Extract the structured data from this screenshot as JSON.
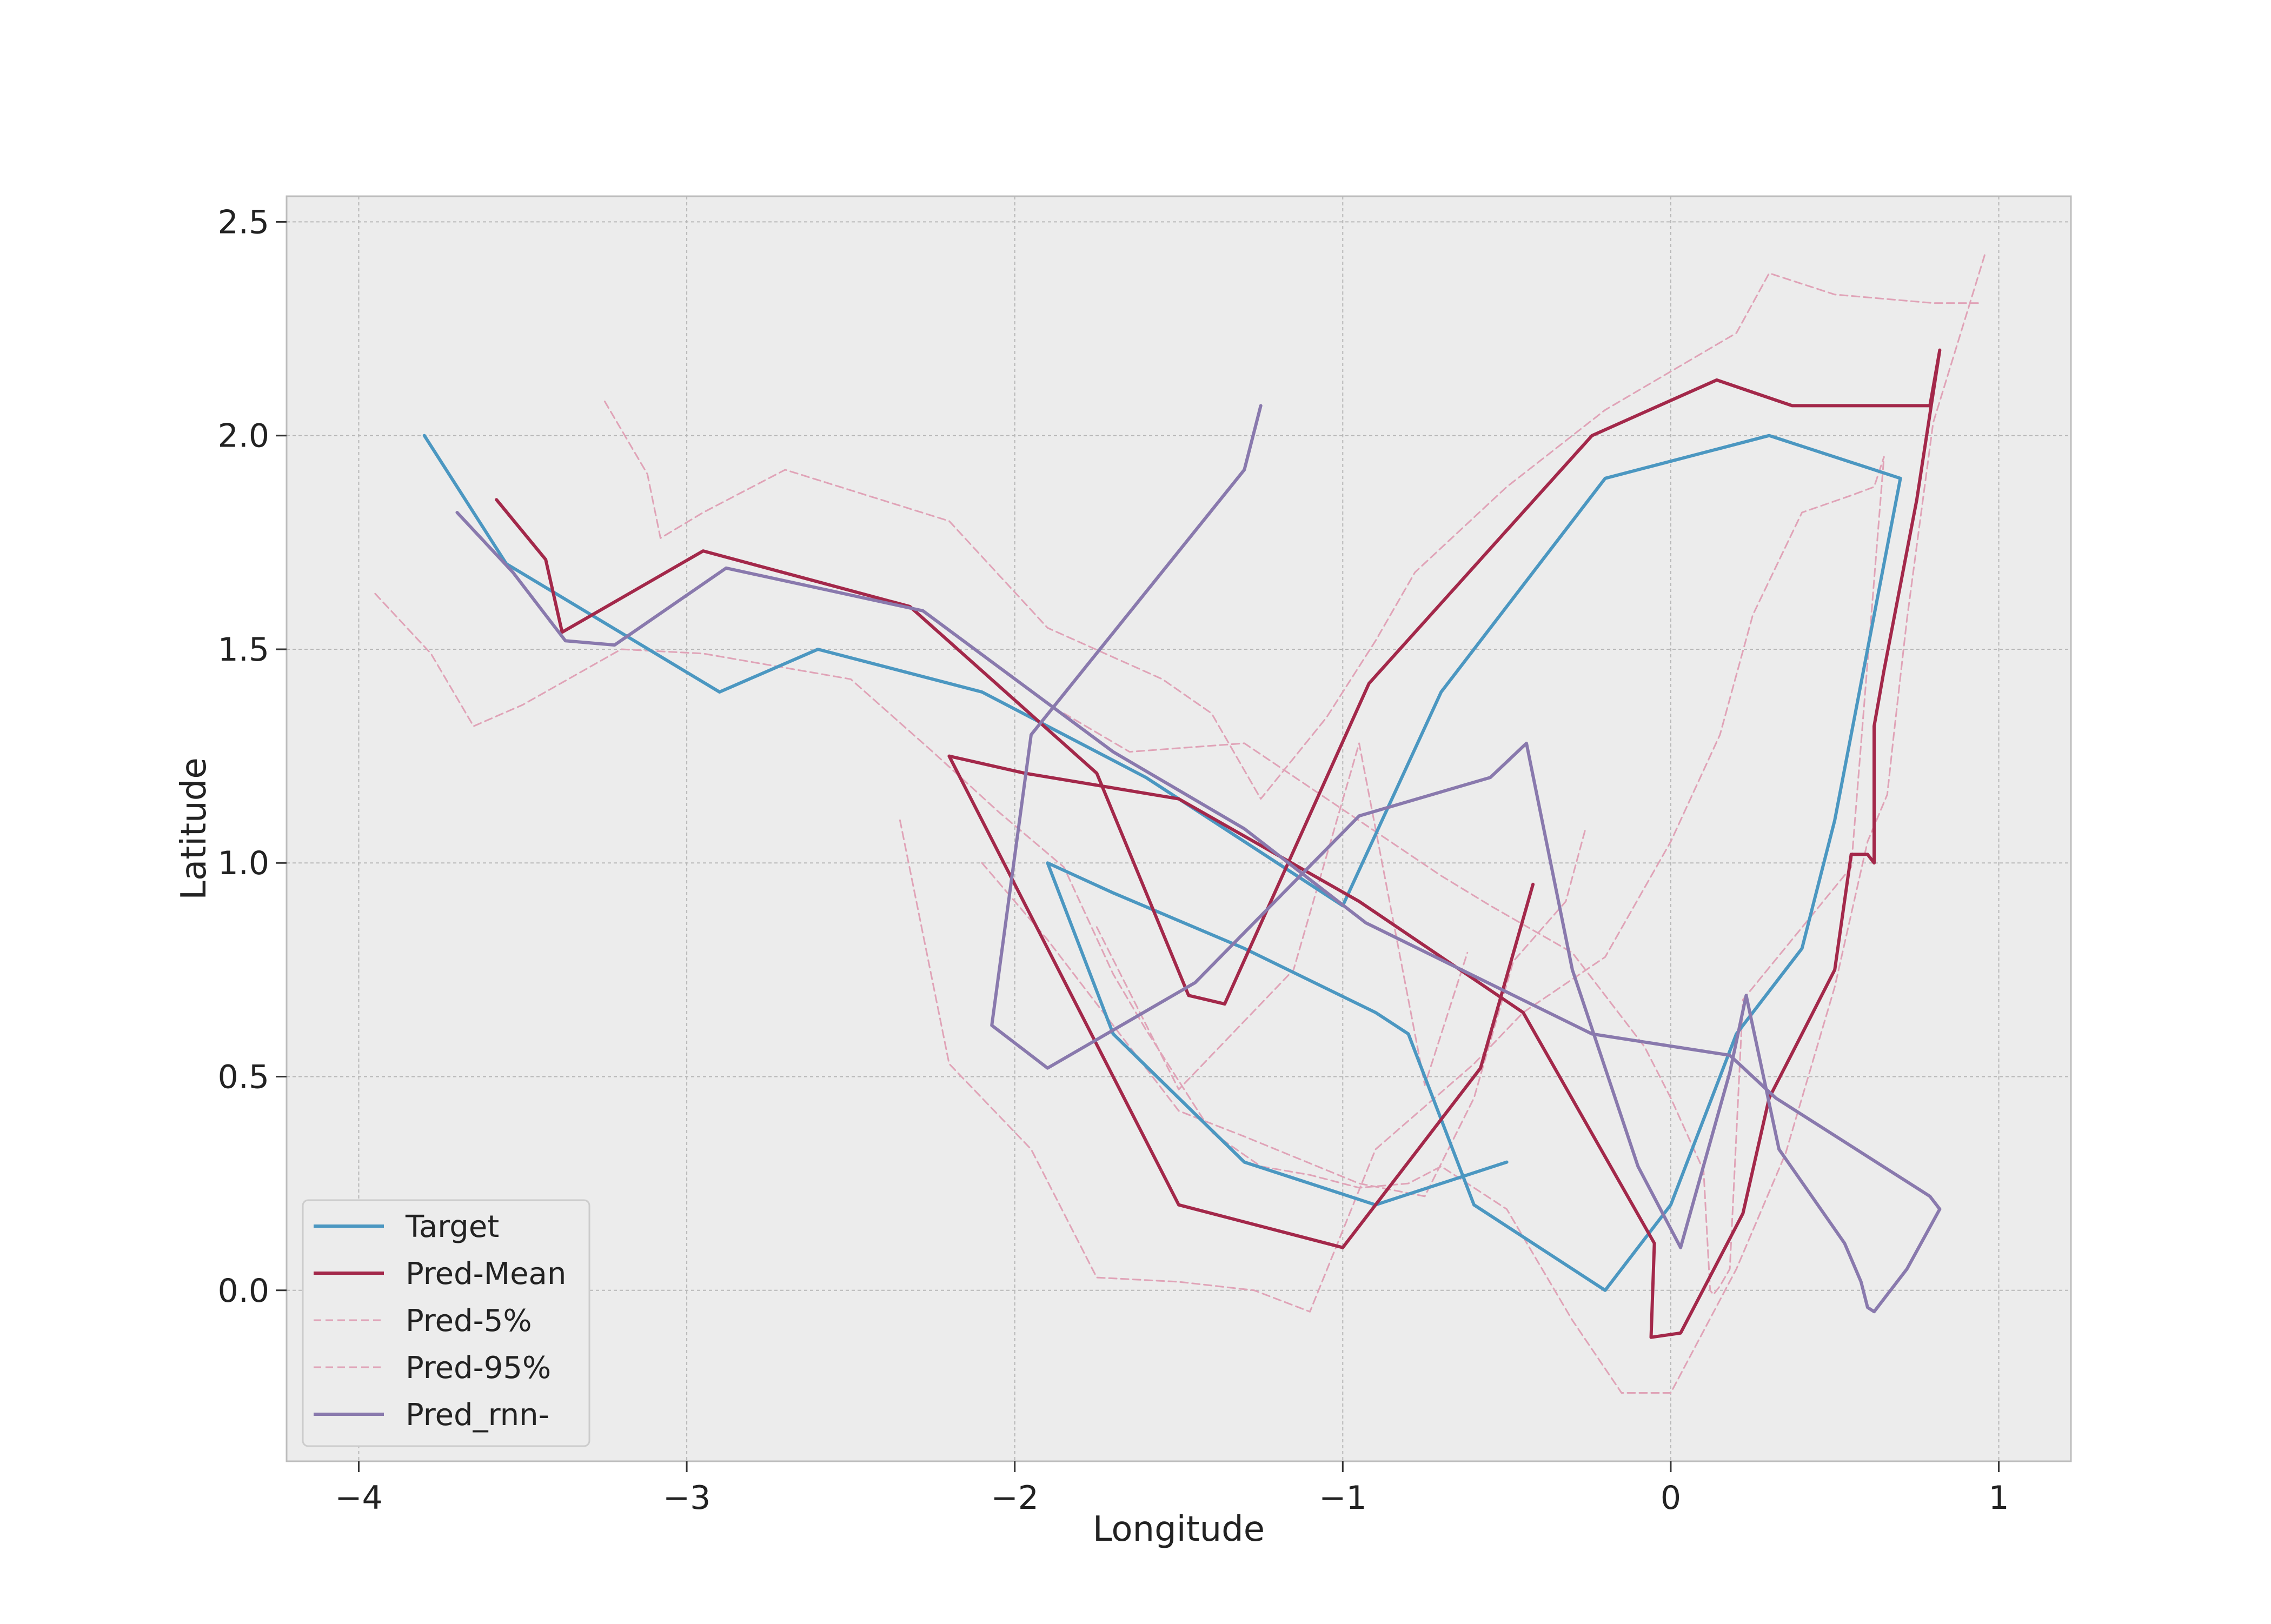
{
  "chart_data": {
    "type": "line",
    "title": "",
    "xlabel": "Longitude",
    "ylabel": "Latitude",
    "xlim": [
      -4.22,
      1.22
    ],
    "ylim": [
      -0.4,
      2.56
    ],
    "xticks": [
      -4,
      -3,
      -2,
      -1,
      0,
      1
    ],
    "xtick_labels": [
      "−4",
      "−3",
      "−2",
      "−1",
      "0",
      "1"
    ],
    "yticks": [
      0.0,
      0.5,
      1.0,
      1.5,
      2.0,
      2.5
    ],
    "ytick_labels": [
      "0.0",
      "0.5",
      "1.0",
      "1.5",
      "2.0",
      "2.5"
    ],
    "grid": true,
    "legend_position": "lower-left",
    "colors": {
      "target": "#4b97c1",
      "mean": "#a3284a",
      "quantile": "#e0a3b7",
      "rnn": "#8979ad",
      "plot_bg": "#ececec",
      "grid": "#b8b8b8",
      "axes_edge": "#bcbcbc"
    },
    "series": [
      {
        "name": "Target",
        "key": "target",
        "style": "solid",
        "x": [
          -3.8,
          -3.55,
          -2.9,
          -2.6,
          -2.1,
          -1.6,
          -1.0,
          -0.7,
          -0.2,
          0.3,
          0.7,
          0.5,
          0.4,
          0.2,
          0.0,
          -0.2,
          -0.6,
          -0.8,
          -0.9,
          -1.3,
          -1.7,
          -1.9,
          -1.7,
          -1.3,
          -0.9,
          -0.5
        ],
        "y": [
          2.0,
          1.7,
          1.4,
          1.5,
          1.4,
          1.2,
          0.9,
          1.4,
          1.9,
          2.0,
          1.9,
          1.1,
          0.8,
          0.6,
          0.2,
          0.0,
          0.2,
          0.6,
          0.65,
          0.8,
          0.93,
          1.0,
          0.6,
          0.3,
          0.2,
          0.3
        ]
      },
      {
        "name": "Pred-Mean",
        "key": "mean",
        "style": "solid",
        "x": [
          -3.58,
          -3.43,
          -3.38,
          -2.95,
          -2.32,
          -1.75,
          -1.47,
          -1.36,
          -0.92,
          -0.24,
          0.14,
          0.37,
          0.79,
          0.82,
          0.75,
          0.65,
          0.62,
          0.62,
          0.6,
          0.55,
          0.5,
          0.4,
          0.3,
          0.22,
          0.03,
          -0.06,
          -0.05,
          -0.45,
          -0.95,
          -1.5,
          -1.97,
          -2.2,
          -1.5,
          -1.0,
          -0.58,
          -0.42
        ],
        "y": [
          1.85,
          1.71,
          1.54,
          1.73,
          1.6,
          1.21,
          0.69,
          0.67,
          1.42,
          2.0,
          2.13,
          2.07,
          2.07,
          2.2,
          1.85,
          1.45,
          1.32,
          1.0,
          1.02,
          1.02,
          0.75,
          0.6,
          0.45,
          0.18,
          -0.1,
          -0.11,
          0.11,
          0.65,
          0.91,
          1.15,
          1.21,
          1.25,
          0.2,
          0.1,
          0.52,
          0.95
        ]
      },
      {
        "name": "Pred-5%",
        "key": "quantile",
        "style": "dashed",
        "x": [
          -3.95,
          -3.78,
          -3.65,
          -3.5,
          -3.2,
          -2.95,
          -2.5,
          -2.25,
          -2.05,
          -1.85,
          -1.7,
          -1.6,
          -1.4,
          -1.25,
          -1.1,
          -0.95,
          -0.8,
          -0.7,
          -0.5,
          -0.3,
          -0.15,
          0.0,
          0.2,
          0.35,
          0.5,
          0.6,
          0.66,
          0.68,
          0.72,
          0.8,
          0.96
        ],
        "y": [
          1.63,
          1.49,
          1.32,
          1.37,
          1.5,
          1.49,
          1.43,
          1.26,
          1.12,
          0.99,
          0.74,
          0.61,
          0.37,
          0.29,
          0.27,
          0.24,
          0.25,
          0.29,
          0.19,
          -0.07,
          -0.24,
          -0.24,
          0.05,
          0.32,
          0.71,
          1.05,
          1.16,
          1.3,
          1.57,
          2.03,
          2.43
        ]
      },
      {
        "name": "Pred-95%",
        "key": "quantile",
        "style": "dashed",
        "x": [
          -3.25,
          -3.12,
          -3.08,
          -2.95,
          -2.7,
          -2.2,
          -1.9,
          -1.55,
          -1.4,
          -1.25,
          -1.05,
          -0.9,
          -0.78,
          -0.5,
          -0.2,
          0.2,
          0.3,
          0.5,
          0.8,
          0.95
        ],
        "y": [
          2.08,
          1.91,
          1.76,
          1.82,
          1.92,
          1.8,
          1.55,
          1.43,
          1.35,
          1.15,
          1.34,
          1.52,
          1.68,
          1.88,
          2.06,
          2.24,
          2.38,
          2.33,
          2.31,
          2.31
        ]
      },
      {
        "name": "",
        "key": "quantile",
        "style": "dashed",
        "x": [
          -2.35,
          -2.2,
          -1.95,
          -1.75,
          -1.5,
          -1.27,
          -1.1,
          -0.9,
          -0.6,
          -0.45,
          -0.2,
          0.0,
          0.15,
          0.25,
          0.4,
          0.55,
          0.62,
          0.65
        ],
        "y": [
          1.1,
          0.53,
          0.33,
          0.03,
          0.02,
          0.0,
          -0.05,
          0.33,
          0.53,
          0.65,
          0.78,
          1.05,
          1.3,
          1.58,
          1.82,
          1.86,
          1.88,
          1.95
        ]
      },
      {
        "name": "",
        "key": "quantile",
        "style": "dashed",
        "x": [
          -1.85,
          -1.65,
          -1.3,
          -0.7,
          -0.55,
          -0.3,
          -0.08,
          0.0,
          0.1,
          0.12,
          0.13,
          0.15,
          0.18,
          0.22,
          0.55,
          0.65
        ],
        "y": [
          1.35,
          1.26,
          1.28,
          0.97,
          0.9,
          0.79,
          0.57,
          0.45,
          0.28,
          0.0,
          -0.01,
          0.01,
          0.05,
          0.68,
          0.99,
          1.95
        ]
      },
      {
        "name": "",
        "key": "quantile",
        "style": "dashed",
        "x": [
          -2.1,
          -1.9,
          -1.5,
          -1.3,
          -0.95,
          -0.75,
          -0.6,
          -0.48,
          -0.32,
          -0.26
        ],
        "y": [
          1.0,
          0.82,
          0.42,
          0.36,
          0.25,
          0.22,
          0.45,
          0.77,
          0.91,
          1.08
        ]
      },
      {
        "name": "",
        "key": "quantile",
        "style": "dashed",
        "x": [
          -1.75,
          -1.5,
          -1.15,
          -0.95,
          -0.75,
          -0.62
        ],
        "y": [
          0.85,
          0.47,
          0.75,
          1.28,
          0.48,
          0.79
        ]
      },
      {
        "name": "Pred_rnn-",
        "key": "rnn",
        "style": "solid",
        "x": [
          -3.7,
          -3.53,
          -3.37,
          -3.22,
          -2.88,
          -2.28,
          -1.7,
          -1.3,
          -0.93,
          -0.24,
          0.18,
          0.32,
          0.79,
          0.82,
          0.72,
          0.62,
          0.6,
          0.58,
          0.53,
          0.33,
          0.23,
          0.18,
          0.03,
          -0.1,
          -0.3,
          -0.44,
          -0.55,
          -0.95,
          -1.45,
          -1.9,
          -2.07,
          -1.95,
          -1.3,
          -1.25
        ],
        "y": [
          1.82,
          1.68,
          1.52,
          1.51,
          1.69,
          1.59,
          1.26,
          1.08,
          0.86,
          0.6,
          0.55,
          0.45,
          0.22,
          0.19,
          0.05,
          -0.05,
          -0.04,
          0.02,
          0.11,
          0.33,
          0.69,
          0.51,
          0.1,
          0.29,
          0.75,
          1.28,
          1.2,
          1.11,
          0.72,
          0.52,
          0.62,
          1.3,
          1.92,
          2.07
        ]
      }
    ]
  }
}
